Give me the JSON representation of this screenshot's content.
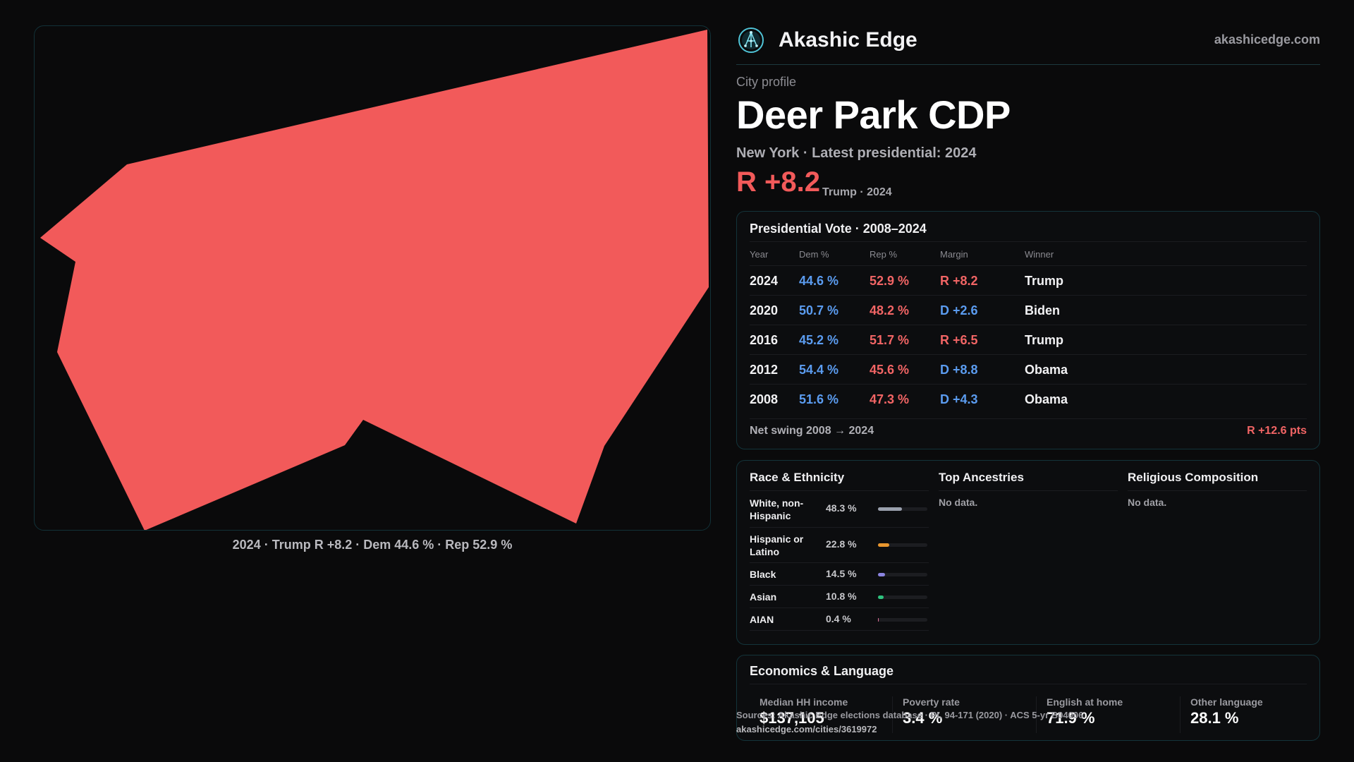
{
  "map": {
    "fill_color": "#f25a5a",
    "caption": "2024 · Trump R +8.2 · Dem 44.6 % · Rep 52.9 %"
  },
  "brand": {
    "name": "Akashic Edge",
    "url": "akashicedge.com",
    "logo_icon": "network-globe-icon"
  },
  "profile": {
    "eyebrow": "City profile",
    "title": "Deer Park CDP",
    "subtitle": "New York  · Latest presidential: 2024",
    "margin": "R +8.2",
    "margin_note": "Trump · 2024"
  },
  "vote": {
    "title": "Presidential Vote · 2008–2024",
    "columns": [
      "Year",
      "Dem %",
      "Rep %",
      "Margin",
      "Winner"
    ],
    "rows": [
      {
        "year": "2024",
        "dem": "44.6 %",
        "rep": "52.9 %",
        "margin": "R +8.2",
        "party": "R",
        "winner": "Trump"
      },
      {
        "year": "2020",
        "dem": "50.7 %",
        "rep": "48.2 %",
        "margin": "D +2.6",
        "party": "D",
        "winner": "Biden"
      },
      {
        "year": "2016",
        "dem": "45.2 %",
        "rep": "51.7 %",
        "margin": "R +6.5",
        "party": "R",
        "winner": "Trump"
      },
      {
        "year": "2012",
        "dem": "54.4 %",
        "rep": "45.6 %",
        "margin": "D +8.8",
        "party": "D",
        "winner": "Obama"
      },
      {
        "year": "2008",
        "dem": "51.6 %",
        "rep": "47.3 %",
        "margin": "D +4.3",
        "party": "D",
        "winner": "Obama"
      }
    ],
    "swing_label": "Net swing 2008 → 2024",
    "swing_value": "R +12.6 pts"
  },
  "race": {
    "title": "Race & Ethnicity",
    "items": [
      {
        "label": "White, non-Hispanic",
        "pct": "48.3 %",
        "value": 48.3,
        "color": "#9aa0ad"
      },
      {
        "label": "Hispanic or Latino",
        "pct": "22.8 %",
        "value": 22.8,
        "color": "#e8962e"
      },
      {
        "label": "Black",
        "pct": "14.5 %",
        "value": 14.5,
        "color": "#8b84e0"
      },
      {
        "label": "Asian",
        "pct": "10.8 %",
        "value": 10.8,
        "color": "#2ec27e"
      },
      {
        "label": "AIAN",
        "pct": "0.4 %",
        "value": 0.4,
        "color": "#e0709a"
      }
    ]
  },
  "ancestries": {
    "title": "Top Ancestries",
    "empty": "No data."
  },
  "religion": {
    "title": "Religious Composition",
    "empty": "No data."
  },
  "economics": {
    "title": "Economics & Language",
    "items": [
      {
        "label": "Median HH income",
        "value": "$137,105"
      },
      {
        "label": "Poverty rate",
        "value": "3.4 %"
      },
      {
        "label": "English at home",
        "value": "71.9 %"
      },
      {
        "label": "Other language",
        "value": "28.1 %"
      }
    ]
  },
  "footer": {
    "source": "Sources: Akashic Edge elections database · PL 94-171 (2020) · ACS 5-yr B04006",
    "link": "akashicedge.com/cities/3619972"
  }
}
